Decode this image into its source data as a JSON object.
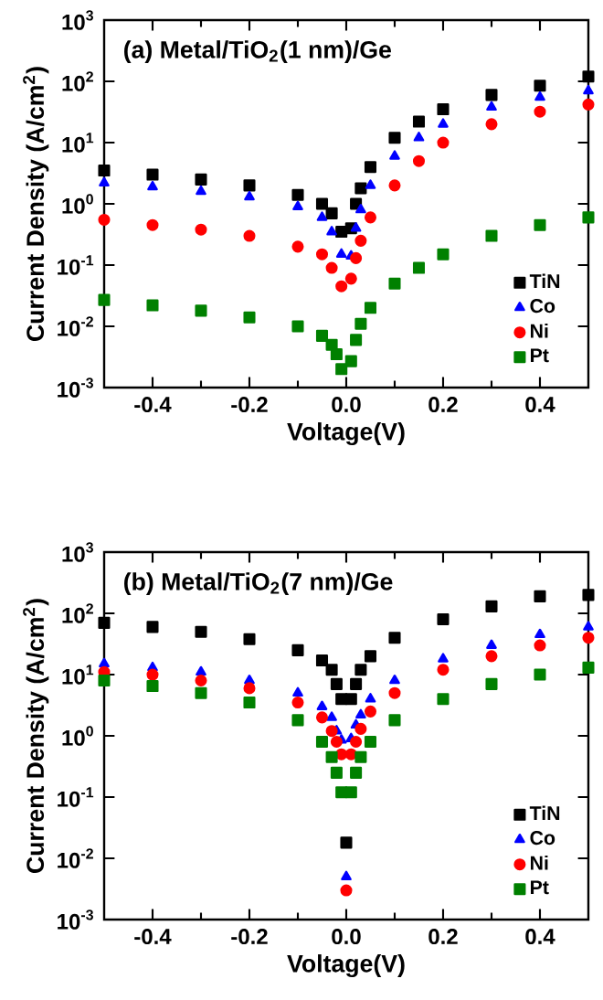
{
  "chart_data": [
    {
      "type": "scatter",
      "title": "(a) Metal/TiO$_{2}$(1 nm)/Ge",
      "xlabel": "Voltage(V)",
      "ylabel": "Current Density (A/cm$^{2}$)",
      "log": "y",
      "legend": "bottom right",
      "xlim": [
        -0.5,
        0.5
      ],
      "ylim": [
        0.001,
        1000
      ],
      "xticks": [
        -0.4,
        -0.2,
        {
          "value": 0,
          "label": "0.0"
        },
        0.2,
        0.4
      ],
      "yticks": [
        {
          "value": 0.001,
          "label": "10$^{-3}$"
        },
        {
          "value": 0.01,
          "label": "10$^{-2}$"
        },
        {
          "value": 0.1,
          "label": "10$^{-1}$"
        },
        {
          "value": 1,
          "label": "10$^{0}$"
        },
        {
          "value": 10,
          "label": "10$^{1}$"
        },
        {
          "value": 100,
          "label": "10$^{2}$"
        },
        {
          "value": 1000,
          "label": "10$^{3}$"
        }
      ],
      "series": [
        {
          "name": "TiN",
          "color": "#000000",
          "marker": "square",
          "x": [
            -0.5,
            -0.4,
            -0.3,
            -0.2,
            -0.1,
            -0.05,
            -0.03,
            -0.01,
            0.01,
            0.02,
            0.03,
            0.05,
            0.1,
            0.15,
            0.2,
            0.3,
            0.4,
            0.5
          ],
          "values": [
            3.5,
            3.0,
            2.5,
            2.0,
            1.4,
            1.0,
            0.7,
            0.35,
            0.4,
            1.0,
            1.8,
            4,
            12,
            22,
            35,
            60,
            85,
            120
          ]
        },
        {
          "name": "Co",
          "color": "#0000ff",
          "marker": "triangle",
          "x": [
            -0.5,
            -0.4,
            -0.3,
            -0.2,
            -0.1,
            -0.05,
            -0.03,
            -0.01,
            0.01,
            0.02,
            0.03,
            0.05,
            0.1,
            0.15,
            0.2,
            0.3,
            0.4,
            0.5
          ],
          "values": [
            2.2,
            1.9,
            1.6,
            1.3,
            0.9,
            0.6,
            0.35,
            0.15,
            0.14,
            0.4,
            0.8,
            2,
            6,
            12,
            20,
            38,
            55,
            70
          ]
        },
        {
          "name": "Ni",
          "color": "#ff0000",
          "marker": "circle",
          "x": [
            -0.5,
            -0.4,
            -0.3,
            -0.2,
            -0.1,
            -0.05,
            -0.03,
            -0.01,
            0.01,
            0.02,
            0.03,
            0.05,
            0.1,
            0.15,
            0.2,
            0.3,
            0.4,
            0.5
          ],
          "values": [
            0.55,
            0.45,
            0.38,
            0.3,
            0.2,
            0.15,
            0.09,
            0.045,
            0.06,
            0.13,
            0.25,
            0.6,
            2,
            5,
            10,
            20,
            32,
            42
          ]
        },
        {
          "name": "Pt",
          "color": "#008000",
          "marker": "square",
          "x": [
            -0.5,
            -0.4,
            -0.3,
            -0.2,
            -0.1,
            -0.05,
            -0.03,
            -0.02,
            -0.01,
            0.01,
            0.02,
            0.03,
            0.05,
            0.1,
            0.15,
            0.2,
            0.3,
            0.4,
            0.5
          ],
          "values": [
            0.027,
            0.022,
            0.018,
            0.014,
            0.01,
            0.007,
            0.005,
            0.0035,
            0.002,
            0.0027,
            0.006,
            0.011,
            0.02,
            0.05,
            0.09,
            0.15,
            0.3,
            0.45,
            0.6
          ]
        }
      ]
    },
    {
      "type": "scatter",
      "title": "(b) Metal/TiO$_{2}$(7 nm)/Ge",
      "xlabel": "Voltage(V)",
      "ylabel": "Current Density (A/cm$^{2}$)",
      "log": "y",
      "legend": "bottom right",
      "xlim": [
        -0.5,
        0.5
      ],
      "ylim": [
        0.001,
        1000
      ],
      "xticks": [
        -0.4,
        -0.2,
        {
          "value": 0,
          "label": "0.0"
        },
        0.2,
        0.4
      ],
      "yticks": [
        {
          "value": 0.001,
          "label": "10$^{-3}$"
        },
        {
          "value": 0.01,
          "label": "10$^{-2}$"
        },
        {
          "value": 0.1,
          "label": "10$^{-1}$"
        },
        {
          "value": 1,
          "label": "10$^{0}$"
        },
        {
          "value": 10,
          "label": "10$^{1}$"
        },
        {
          "value": 100,
          "label": "10$^{2}$"
        },
        {
          "value": 1000,
          "label": "10$^{3}$"
        }
      ],
      "series": [
        {
          "name": "TiN",
          "color": "#000000",
          "marker": "square",
          "x": [
            -0.5,
            -0.4,
            -0.3,
            -0.2,
            -0.1,
            -0.05,
            -0.03,
            -0.02,
            -0.01,
            0,
            0.01,
            0.02,
            0.03,
            0.05,
            0.1,
            0.2,
            0.3,
            0.4,
            0.5
          ],
          "values": [
            70,
            60,
            50,
            38,
            25,
            17,
            12,
            7,
            4,
            0.018,
            4,
            7,
            12,
            20,
            40,
            80,
            130,
            190,
            200
          ]
        },
        {
          "name": "Co",
          "color": "#0000ff",
          "marker": "triangle",
          "x": [
            -0.5,
            -0.4,
            -0.3,
            -0.2,
            -0.1,
            -0.05,
            -0.03,
            -0.02,
            -0.01,
            0,
            0.01,
            0.02,
            0.03,
            0.05,
            0.1,
            0.2,
            0.3,
            0.4,
            0.5
          ],
          "values": [
            15,
            13,
            11,
            8,
            5,
            3,
            2,
            1.2,
            0.85,
            0.005,
            0.9,
            1.5,
            2.2,
            4,
            8,
            18,
            30,
            45,
            60
          ]
        },
        {
          "name": "Ni",
          "color": "#ff0000",
          "marker": "circle",
          "x": [
            -0.5,
            -0.4,
            -0.3,
            -0.2,
            -0.1,
            -0.05,
            -0.03,
            -0.02,
            -0.01,
            0,
            0.01,
            0.02,
            0.03,
            0.05,
            0.1,
            0.2,
            0.3,
            0.4,
            0.5
          ],
          "values": [
            11,
            10,
            8,
            6,
            3.5,
            2,
            1.2,
            0.8,
            0.5,
            0.003,
            0.5,
            0.8,
            1.3,
            2.5,
            5,
            12,
            20,
            30,
            40
          ]
        },
        {
          "name": "Pt",
          "color": "#008000",
          "marker": "square",
          "x": [
            -0.5,
            -0.4,
            -0.3,
            -0.2,
            -0.1,
            -0.05,
            -0.03,
            -0.02,
            -0.01,
            0.01,
            0.02,
            0.03,
            0.05,
            0.1,
            0.2,
            0.3,
            0.4,
            0.5
          ],
          "values": [
            8,
            6.5,
            5,
            3.5,
            1.8,
            0.8,
            0.45,
            0.25,
            0.12,
            0.12,
            0.25,
            0.45,
            0.8,
            1.8,
            4,
            7,
            10,
            13
          ]
        }
      ]
    }
  ]
}
